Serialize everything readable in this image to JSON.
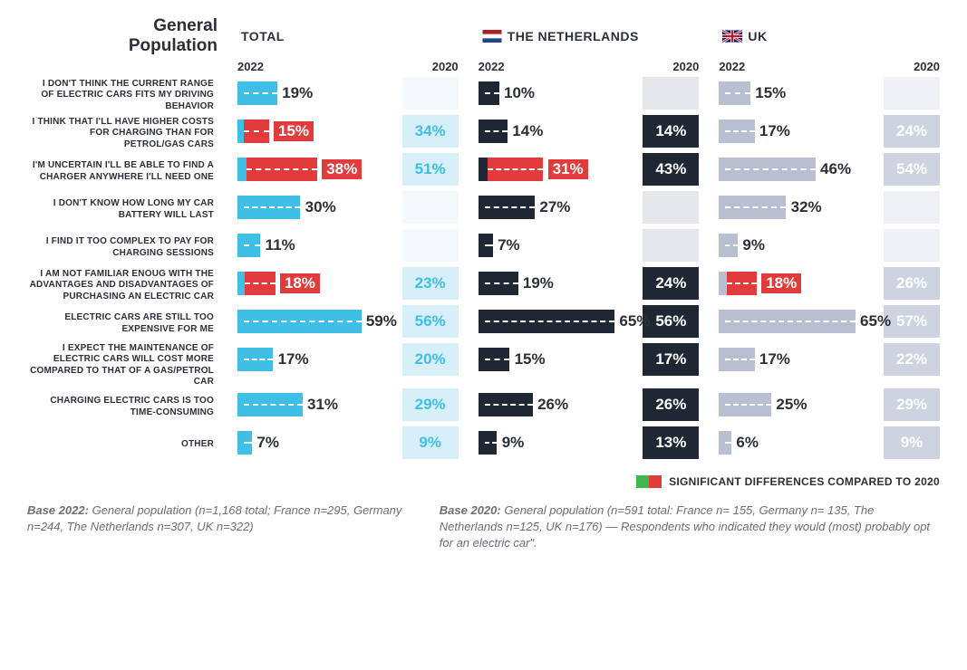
{
  "title": "General Population",
  "columns": [
    {
      "key": "total",
      "label": "TOTAL",
      "flag": null,
      "color2022": "#3fbfe5",
      "color2020_bg": "#d6eff9",
      "color2020_text": "#3fbfe5",
      "empty2020_bg": "#f4f9fb"
    },
    {
      "key": "nl",
      "label": "THE NETHERLANDS",
      "flag": "nl",
      "color2022": "#1e2733",
      "color2020_bg": "#1e2733",
      "color2020_text": "#ffffff",
      "empty2020_bg": "#e6e7ea"
    },
    {
      "key": "uk",
      "label": "UK",
      "flag": "uk",
      "color2022": "#b8bfd0",
      "color2020_bg": "#cdd3e0",
      "color2020_text": "#ffffff",
      "empty2020_bg": "#eef0f5"
    }
  ],
  "year_left": "2022",
  "year_right": "2020",
  "sig_color": "#e13b3b",
  "bar_max": 75,
  "rows": [
    {
      "label": "I DON'T THINK THE CURRENT RANGE OF ELECTRIC CARS FITS MY DRIVING BEHAVIOR",
      "cells": [
        {
          "v2022": 19,
          "v2020": null,
          "sig": false
        },
        {
          "v2022": 10,
          "v2020": null,
          "sig": false
        },
        {
          "v2022": 15,
          "v2020": null,
          "sig": false
        }
      ]
    },
    {
      "label": "I THINK THAT I'LL HAVE HIGHER COSTS FOR CHARGING THAN FOR PETROL/GAS CARS",
      "cells": [
        {
          "v2022": 15,
          "v2020": 34,
          "sig": true
        },
        {
          "v2022": 14,
          "v2020": 14,
          "sig": false
        },
        {
          "v2022": 17,
          "v2020": 24,
          "sig": false
        }
      ]
    },
    {
      "label": "I'M UNCERTAIN I'LL BE ABLE TO FIND A CHARGER ANYWHERE I'LL NEED ONE",
      "cells": [
        {
          "v2022": 38,
          "v2020": 51,
          "sig": true
        },
        {
          "v2022": 31,
          "v2020": 43,
          "sig": true
        },
        {
          "v2022": 46,
          "v2020": 54,
          "sig": false
        }
      ]
    },
    {
      "label": "I DON'T KNOW HOW LONG MY CAR BATTERY WILL LAST",
      "cells": [
        {
          "v2022": 30,
          "v2020": null,
          "sig": false
        },
        {
          "v2022": 27,
          "v2020": null,
          "sig": false
        },
        {
          "v2022": 32,
          "v2020": null,
          "sig": false
        }
      ]
    },
    {
      "label": "I FIND IT TOO COMPLEX TO PAY FOR CHARGING SESSIONS",
      "cells": [
        {
          "v2022": 11,
          "v2020": null,
          "sig": false
        },
        {
          "v2022": 7,
          "v2020": null,
          "sig": false
        },
        {
          "v2022": 9,
          "v2020": null,
          "sig": false
        }
      ]
    },
    {
      "label": "I AM NOT FAMILIAR ENOUG WITH THE ADVANTAGES AND DISADVANTAGES OF PURCHASING AN ELECTRIC CAR",
      "cells": [
        {
          "v2022": 18,
          "v2020": 23,
          "sig": true
        },
        {
          "v2022": 19,
          "v2020": 24,
          "sig": false
        },
        {
          "v2022": 18,
          "v2020": 26,
          "sig": true
        }
      ]
    },
    {
      "label": "ELECTRIC CARS ARE STILL TOO EXPENSIVE FOR ME",
      "cells": [
        {
          "v2022": 59,
          "v2020": 56,
          "sig": false
        },
        {
          "v2022": 65,
          "v2020": 56,
          "sig": false
        },
        {
          "v2022": 65,
          "v2020": 57,
          "sig": false
        }
      ]
    },
    {
      "label": "I EXPECT THE MAINTENANCE OF ELECTRIC CARS WILL COST MORE COMPARED TO THAT OF A GAS/PETROL CAR",
      "cells": [
        {
          "v2022": 17,
          "v2020": 20,
          "sig": false
        },
        {
          "v2022": 15,
          "v2020": 17,
          "sig": false
        },
        {
          "v2022": 17,
          "v2020": 22,
          "sig": false
        }
      ]
    },
    {
      "label": "CHARGING ELECTRIC CARS IS TOO TIME-CONSUMING",
      "cells": [
        {
          "v2022": 31,
          "v2020": 29,
          "sig": false
        },
        {
          "v2022": 26,
          "v2020": 26,
          "sig": false
        },
        {
          "v2022": 25,
          "v2020": 29,
          "sig": false
        }
      ]
    },
    {
      "label": "OTHER",
      "cells": [
        {
          "v2022": 7,
          "v2020": 9,
          "sig": false
        },
        {
          "v2022": 9,
          "v2020": 13,
          "sig": false
        },
        {
          "v2022": 6,
          "v2020": 9,
          "sig": false
        }
      ]
    }
  ],
  "legend_text": "SIGNIFICANT DIFFERENCES COMPARED TO 2020",
  "legend_green": "#3fb84f",
  "footnote_left": "Base 2022: General population (n=1,168 total; France n=295, Germany n=244, The Netherlands n=307, UK n=322)",
  "footnote_right": "Base 2020: General population (n=591 total: France n= 155, Germany n= 135, The Netherlands n=125, UK n=176) — Respondents who indicated they would (most) probably opt for an electric car\"."
}
